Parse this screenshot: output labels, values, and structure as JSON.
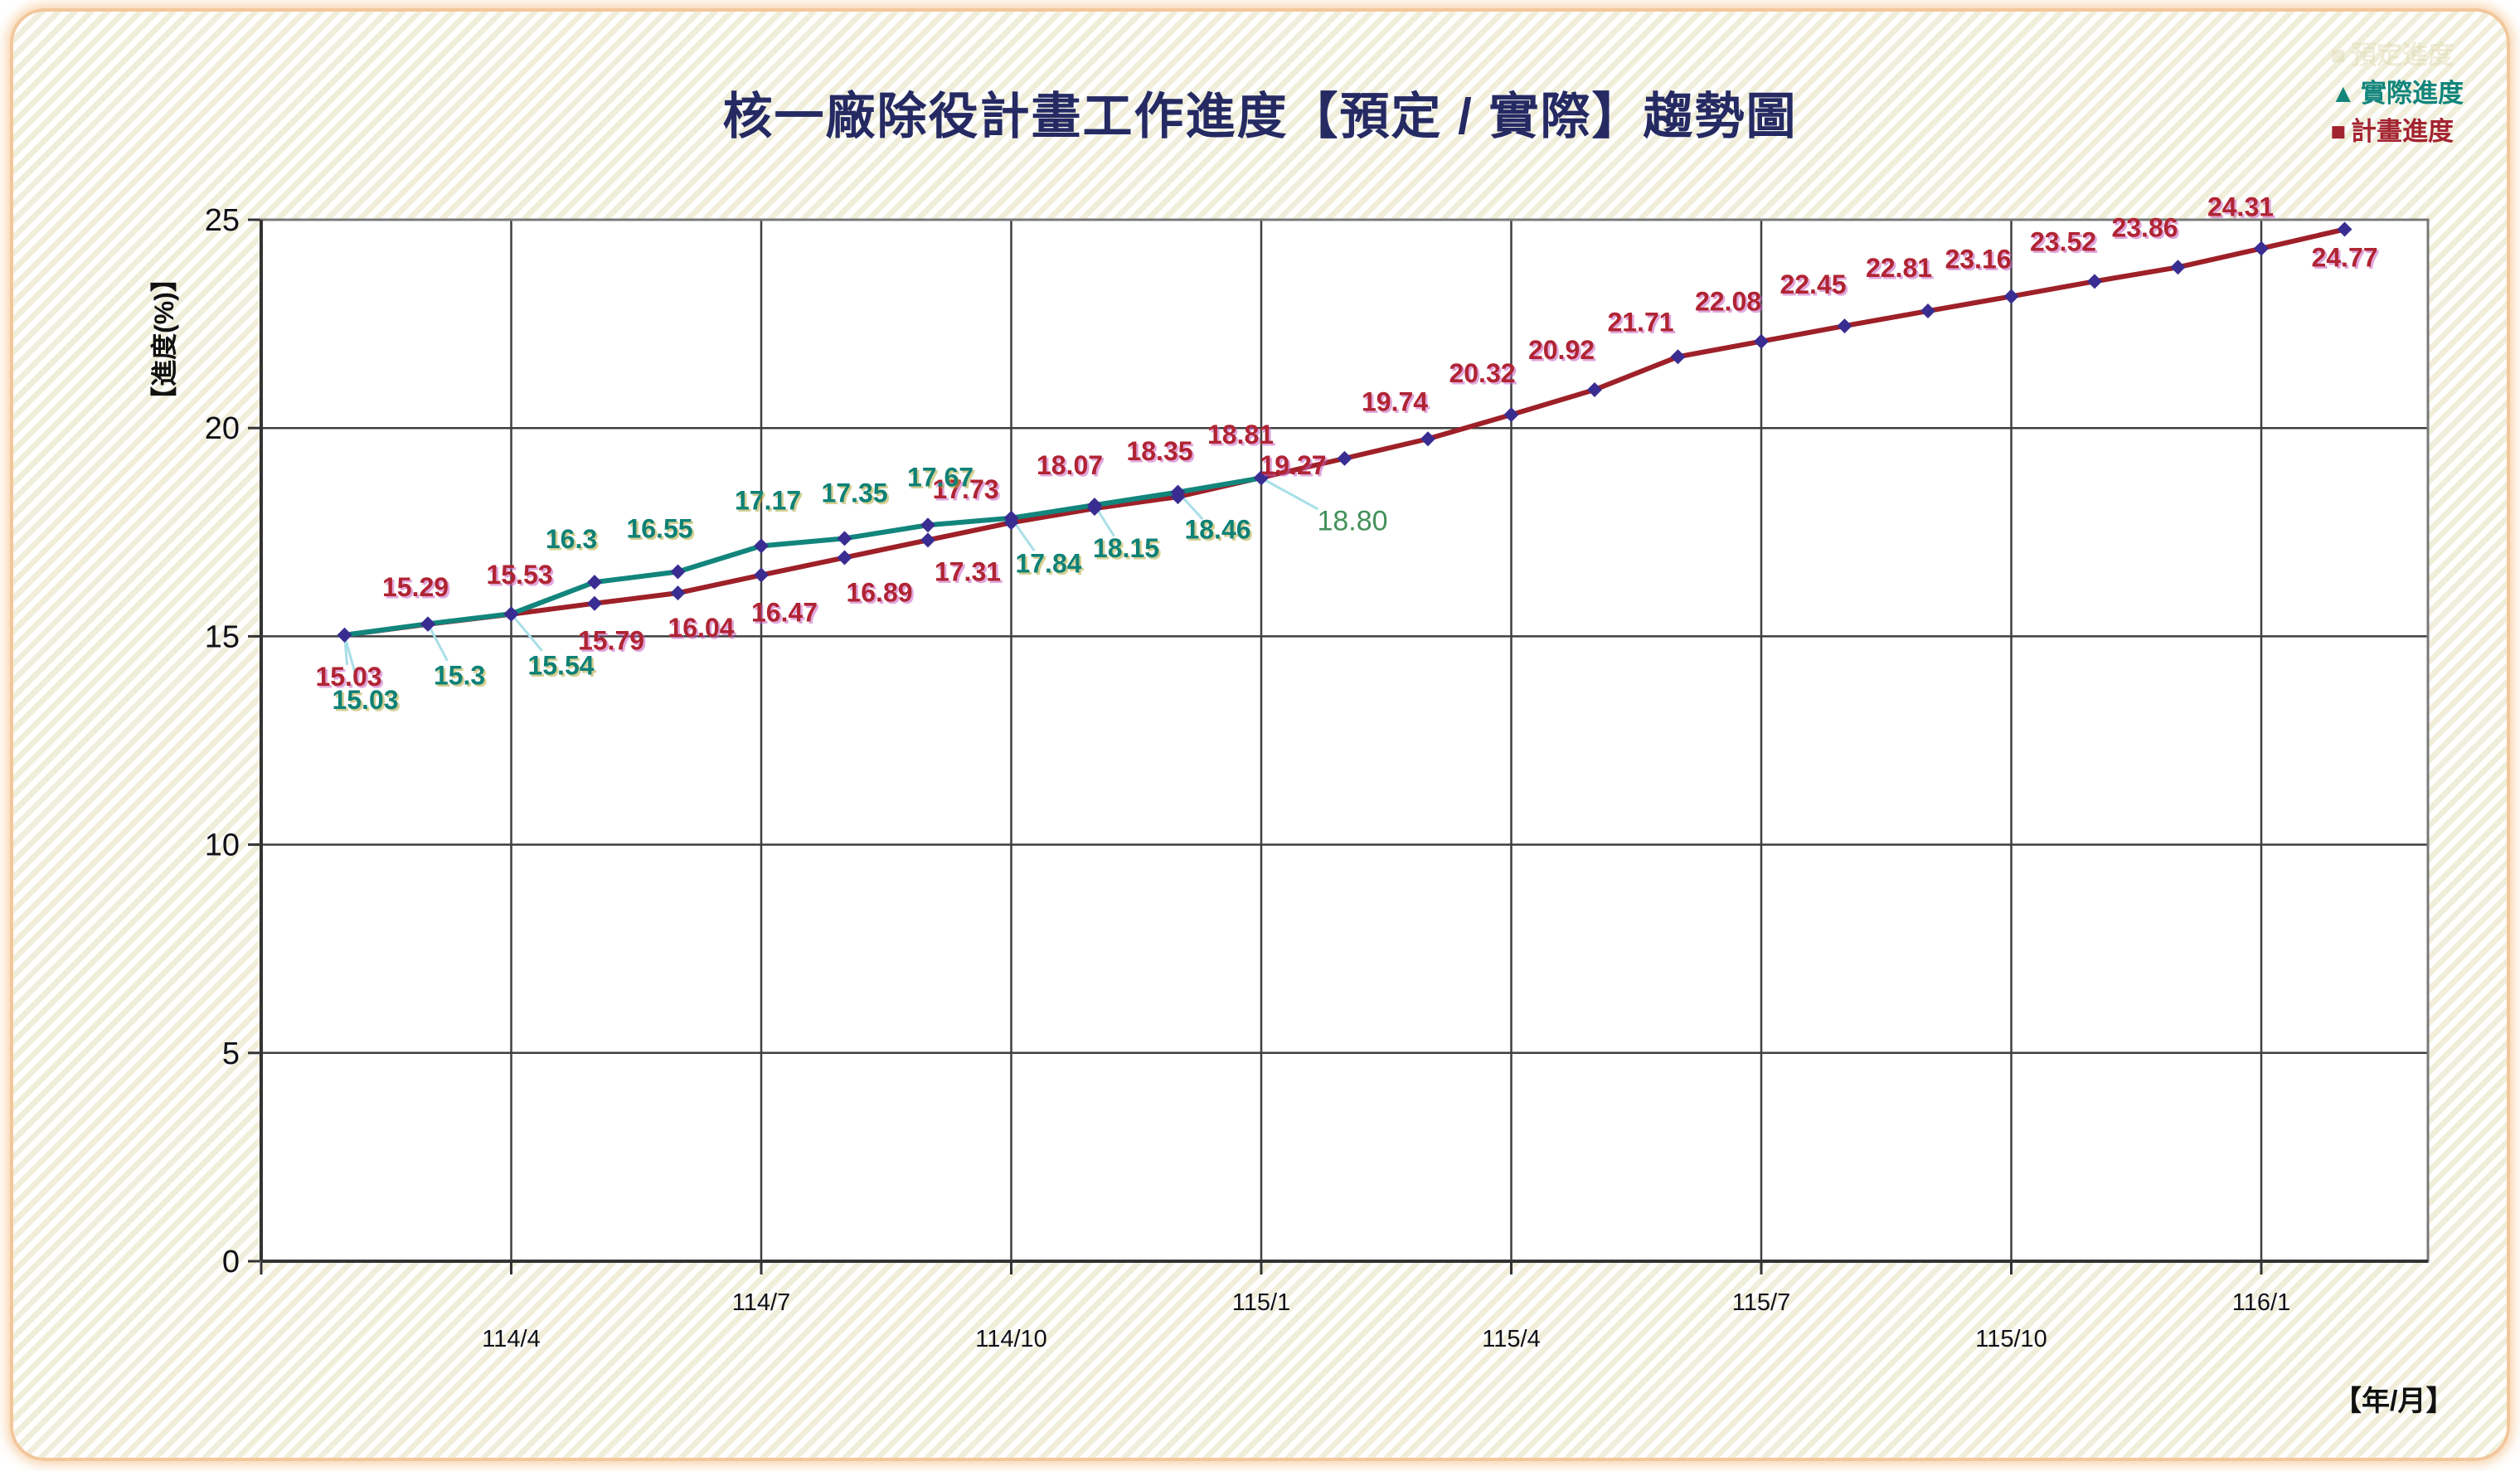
{
  "page": {
    "title": "核一廠除役計畫工作進度【預定 / 實際】趨勢圖"
  },
  "legend": {
    "ghost": {
      "marker": "■",
      "label": "預定進度"
    },
    "items": [
      {
        "id": "actual",
        "marker": "▲",
        "label": "實際進度",
        "color": "#12857C"
      },
      {
        "id": "plan",
        "marker": "■",
        "label": "計畫進度",
        "color": "#A32431"
      }
    ]
  },
  "axes": {
    "y_title": "【進度(%)】",
    "x_title": "【年/月】",
    "y_ticks": [
      0,
      5,
      10,
      15,
      20,
      25
    ],
    "x_ticks": [
      {
        "label": "114/4",
        "month_index": 2,
        "row": "lower"
      },
      {
        "label": "114/7",
        "month_index": 5,
        "row": "upper"
      },
      {
        "label": "114/10",
        "month_index": 8,
        "row": "lower"
      },
      {
        "label": "115/1",
        "month_index": 11,
        "row": "upper"
      },
      {
        "label": "115/4",
        "month_index": 14,
        "row": "lower"
      },
      {
        "label": "115/7",
        "month_index": 17,
        "row": "upper"
      },
      {
        "label": "115/10",
        "month_index": 20,
        "row": "lower"
      },
      {
        "label": "116/1",
        "month_index": 23,
        "row": "upper"
      }
    ]
  },
  "chart_data": {
    "type": "line",
    "title": "核一廠除役計畫工作進度【預定 / 實際】趨勢圖",
    "xlabel": "年/月",
    "ylabel": "進度(%)",
    "ylim": [
      0,
      25
    ],
    "grid": true,
    "legend_position": "top-right",
    "marker_color": "#3A2D91",
    "leader_line_color": "#A8DFE8",
    "series": [
      {
        "name": "計畫進度",
        "color": "#9E2028",
        "label_color": "#B02433",
        "label_shadow": "#C860C0",
        "x": [
          "114/2",
          "114/3",
          "114/4",
          "114/5",
          "114/6",
          "114/7",
          "114/8",
          "114/9",
          "114/10",
          "114/11",
          "114/12",
          "115/1",
          "115/2",
          "115/3",
          "115/4",
          "115/5",
          "115/6",
          "115/7",
          "115/8",
          "115/9",
          "115/10",
          "115/11",
          "115/12",
          "116/1",
          "116/2"
        ],
        "values": [
          15.03,
          15.29,
          15.53,
          15.79,
          16.04,
          16.47,
          16.89,
          17.31,
          17.73,
          18.07,
          18.35,
          18.81,
          19.27,
          19.74,
          20.32,
          20.92,
          21.71,
          22.08,
          22.45,
          22.81,
          23.16,
          23.52,
          23.86,
          24.31,
          24.77
        ],
        "labels": [
          "15.03",
          "15.29",
          "15.53",
          "15.79",
          "16.04",
          "16.47",
          "16.89",
          "17.31",
          "17.73",
          "18.07",
          "18.35",
          "18.81",
          "19.27",
          "19.74",
          "20.32",
          "20.92",
          "21.71",
          "22.08",
          "22.45",
          "22.81",
          "23.16",
          "23.52",
          "23.86",
          "24.31",
          "24.77"
        ],
        "label_offsets": [
          [
            5,
            50
          ],
          [
            -15,
            -45
          ],
          [
            10,
            -48
          ],
          [
            20,
            45
          ],
          [
            28,
            42
          ],
          [
            28,
            45
          ],
          [
            42,
            42
          ],
          [
            48,
            38
          ],
          [
            -55,
            -40
          ],
          [
            -30,
            -52
          ],
          [
            -22,
            -55
          ],
          [
            -25,
            -52
          ],
          [
            -62,
            8
          ],
          [
            -40,
            -45
          ],
          [
            -35,
            -50
          ],
          [
            -40,
            -48
          ],
          [
            -45,
            -42
          ],
          [
            -40,
            -48
          ],
          [
            -38,
            -50
          ],
          [
            -35,
            -52
          ],
          [
            -40,
            -45
          ],
          [
            -38,
            -48
          ],
          [
            -40,
            -48
          ],
          [
            -25,
            -50
          ],
          [
            0,
            34
          ]
        ],
        "leader_points": [
          0
        ]
      },
      {
        "name": "實際進度",
        "color": "#12857C",
        "label_color": "#0F8176",
        "label_shadow": "#B3A93C",
        "x": [
          "114/2",
          "114/3",
          "114/4",
          "114/5",
          "114/6",
          "114/7",
          "114/8",
          "114/9",
          "114/10",
          "114/11",
          "114/12",
          "115/1"
        ],
        "values": [
          15.03,
          15.3,
          15.54,
          16.3,
          16.55,
          17.17,
          17.35,
          17.67,
          17.84,
          18.15,
          18.46,
          18.8
        ],
        "labels": [
          "15.03",
          "15.3",
          "15.54",
          "16.3",
          "16.55",
          "17.17",
          "17.35",
          "17.67",
          "17.84",
          "18.15",
          "18.46",
          "18.80"
        ],
        "label_offsets": [
          [
            25,
            78
          ],
          [
            38,
            62
          ],
          [
            60,
            62
          ],
          [
            -28,
            -52
          ],
          [
            -22,
            -52
          ],
          [
            8,
            -55
          ],
          [
            12,
            -55
          ],
          [
            15,
            -58
          ],
          [
            45,
            55
          ],
          [
            38,
            52
          ],
          [
            48,
            45
          ],
          [
            110,
            52
          ]
        ],
        "leader_points": [
          0,
          1,
          2,
          8,
          9,
          10,
          11
        ],
        "final_label_style": {
          "color": "#43915A",
          "weight": "normal",
          "size": 34,
          "shadow": false
        }
      }
    ]
  },
  "colors": {
    "title": "#252A63",
    "grid": "#3F3F3F",
    "frame": "#787878",
    "axis": "#333333",
    "tick_text": "#101018",
    "card_border": "#F3C79C",
    "stripe": "#F0EEDA"
  }
}
